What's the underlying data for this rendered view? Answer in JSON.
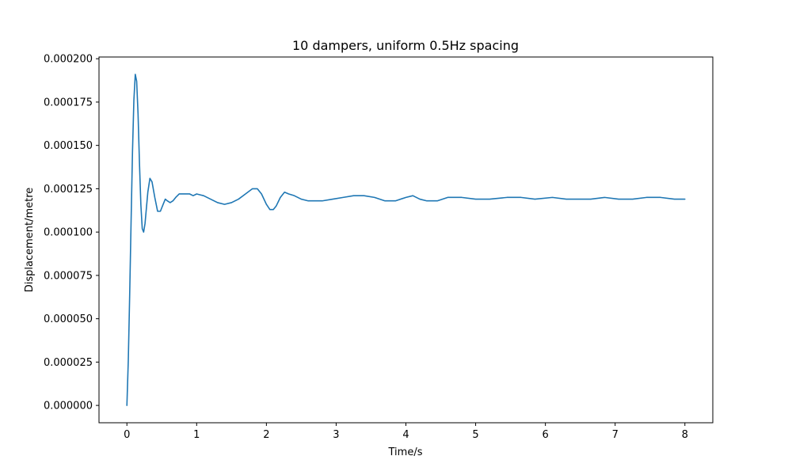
{
  "chart_data": {
    "type": "line",
    "title": "10 dampers, uniform 0.5Hz spacing",
    "xlabel": "Time/s",
    "ylabel": "Displacement/metre",
    "xlim": [
      -0.4,
      8.4
    ],
    "ylim": [
      -1e-05,
      0.000201
    ],
    "x_ticks": [
      0,
      1,
      2,
      3,
      4,
      5,
      6,
      7,
      8
    ],
    "x_tick_labels": [
      "0",
      "1",
      "2",
      "3",
      "4",
      "5",
      "6",
      "7",
      "8"
    ],
    "y_ticks": [
      0.0,
      2.5e-05,
      5e-05,
      7.5e-05,
      0.0001,
      0.000125,
      0.00015,
      0.000175,
      0.0002
    ],
    "y_tick_labels": [
      "0.000000",
      "0.000025",
      "0.000050",
      "0.000075",
      "0.000100",
      "0.000125",
      "0.000150",
      "0.000175",
      "0.000200"
    ],
    "grid": false,
    "series": [
      {
        "color": "#1f77b4",
        "x": [
          0.0,
          0.02,
          0.04,
          0.06,
          0.08,
          0.1,
          0.12,
          0.14,
          0.16,
          0.18,
          0.2,
          0.22,
          0.24,
          0.26,
          0.28,
          0.3,
          0.33,
          0.36,
          0.4,
          0.44,
          0.48,
          0.52,
          0.55,
          0.58,
          0.62,
          0.66,
          0.7,
          0.75,
          0.8,
          0.85,
          0.9,
          0.95,
          1.0,
          1.1,
          1.2,
          1.3,
          1.4,
          1.5,
          1.6,
          1.7,
          1.8,
          1.87,
          1.93,
          2.0,
          2.05,
          2.1,
          2.14,
          2.2,
          2.26,
          2.32,
          2.4,
          2.5,
          2.6,
          2.7,
          2.8,
          2.95,
          3.1,
          3.25,
          3.4,
          3.55,
          3.7,
          3.85,
          4.0,
          4.1,
          4.2,
          4.3,
          4.45,
          4.6,
          4.8,
          5.0,
          5.2,
          5.45,
          5.65,
          5.85,
          6.1,
          6.3,
          6.45,
          6.65,
          6.85,
          7.05,
          7.25,
          7.45,
          7.65,
          7.85,
          8.0
        ],
        "y": [
          0.0,
          2.6e-05,
          6.4e-05,
          0.000106,
          0.000146,
          0.000176,
          0.000191,
          0.000187,
          0.000168,
          0.00014,
          0.000116,
          0.000102,
          0.0001,
          0.000105,
          0.000114,
          0.000123,
          0.000131,
          0.000129,
          0.00012,
          0.000112,
          0.000112,
          0.000116,
          0.000119,
          0.000118,
          0.000117,
          0.000118,
          0.00012,
          0.000122,
          0.000122,
          0.000122,
          0.000122,
          0.000121,
          0.000122,
          0.000121,
          0.000119,
          0.000117,
          0.000116,
          0.000117,
          0.000119,
          0.000122,
          0.000125,
          0.000125,
          0.000122,
          0.000116,
          0.000113,
          0.000113,
          0.000115,
          0.00012,
          0.000123,
          0.000122,
          0.000121,
          0.000119,
          0.000118,
          0.000118,
          0.000118,
          0.000119,
          0.00012,
          0.000121,
          0.000121,
          0.00012,
          0.000118,
          0.000118,
          0.00012,
          0.000121,
          0.000119,
          0.000118,
          0.000118,
          0.00012,
          0.00012,
          0.000119,
          0.000119,
          0.00012,
          0.00012,
          0.000119,
          0.00012,
          0.000119,
          0.000119,
          0.000119,
          0.00012,
          0.000119,
          0.000119,
          0.00012,
          0.00012,
          0.000119,
          0.000119
        ]
      }
    ]
  }
}
